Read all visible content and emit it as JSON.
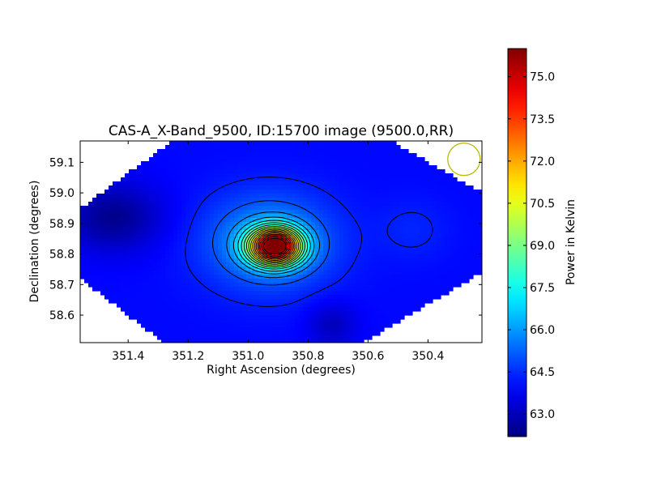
{
  "chart_data": {
    "type": "heatmap",
    "title": "CAS-A_X-Band_9500, ID:15700 image (9500.0,RR)",
    "xlabel": "Right Ascension (degrees)",
    "ylabel": "Declination (degrees)",
    "xlim": [
      351.56,
      350.22
    ],
    "ylim": [
      58.51,
      59.17
    ],
    "xticks": [
      351.4,
      351.2,
      351.0,
      350.8,
      350.6,
      350.4
    ],
    "xtick_labels": [
      "351.4",
      "351.2",
      "351.0",
      "350.8",
      "350.6",
      "350.4"
    ],
    "yticks": [
      58.6,
      58.7,
      58.8,
      58.9,
      59.0,
      59.1
    ],
    "ytick_labels": [
      "58.6",
      "58.7",
      "58.8",
      "58.9",
      "59.0",
      "59.1"
    ],
    "colormap": "jet",
    "contours": "black",
    "grid": false,
    "colorbar": {
      "label": "Power in Kelvin",
      "range": [
        62.2,
        76.0
      ],
      "ticks": [
        63.0,
        64.5,
        66.0,
        67.5,
        69.0,
        70.5,
        72.0,
        73.5,
        75.0
      ],
      "tick_labels": [
        "63.0",
        "64.5",
        "66.0",
        "67.5",
        "69.0",
        "70.5",
        "72.0",
        "73.5",
        "75.0"
      ]
    },
    "peak": {
      "ra": 350.91,
      "dec": 58.825,
      "value": 75.8
    },
    "beam_marker": {
      "ra": 350.28,
      "dec": 59.11,
      "color": "#bbbb00"
    },
    "footprint": [
      [
        351.56,
        58.95
      ],
      [
        351.24,
        59.18
      ],
      [
        350.54,
        59.18
      ],
      [
        350.22,
        59.0
      ],
      [
        350.22,
        58.74
      ],
      [
        350.62,
        58.51
      ],
      [
        351.28,
        58.51
      ],
      [
        351.56,
        58.72
      ]
    ]
  }
}
